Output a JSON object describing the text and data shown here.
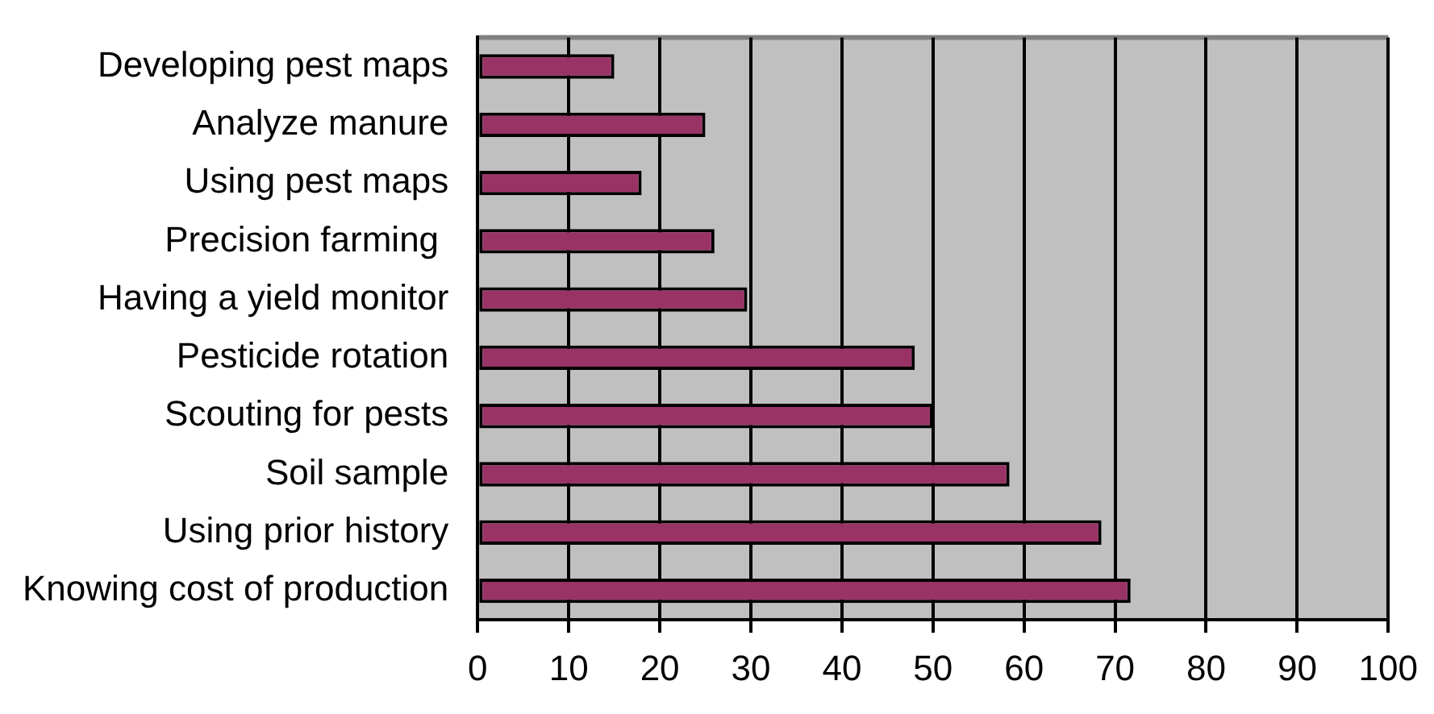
{
  "chart_data": {
    "type": "bar",
    "orientation": "horizontal",
    "categories": [
      "Developing pest maps",
      "Analyze manure",
      "Using pest maps",
      "Precision farming ",
      "Having a yield monitor",
      "Pesticide rotation",
      "Scouting for pests",
      "Soil sample",
      "Using prior history",
      "Knowing cost of production"
    ],
    "values": [
      15,
      25,
      18,
      26,
      29.6,
      48,
      50,
      58.4,
      68.5,
      71.7
    ],
    "color": "#993366",
    "xlim": [
      0,
      100
    ],
    "xticks": [
      0,
      10,
      20,
      30,
      40,
      50,
      60,
      70,
      80,
      90,
      100
    ],
    "grid": "x",
    "legend": false
  }
}
